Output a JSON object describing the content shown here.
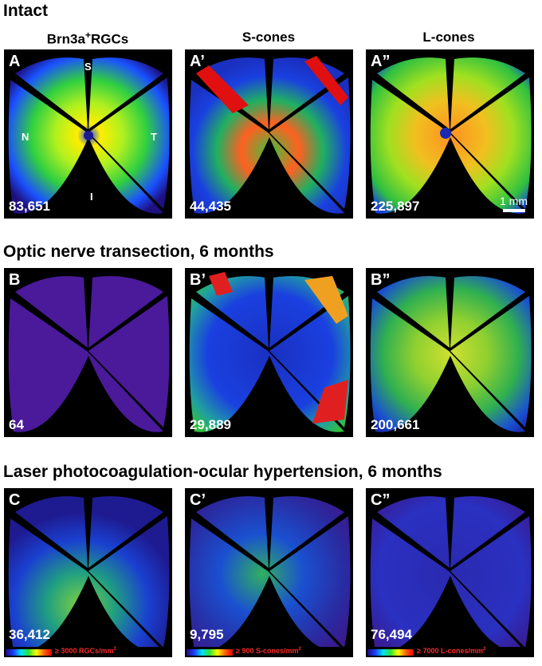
{
  "sections": {
    "intact": "Intact",
    "transection": "Optic nerve transection, 6 months",
    "laser": "Laser photocoagulation-ocular hypertension, 6 months"
  },
  "columns": {
    "rgc_prefix": "Brn3a",
    "rgc_sup": "+",
    "rgc_suffix": "RGCs",
    "scones": "S-cones",
    "lcones": "L-cones"
  },
  "orientation": {
    "s": "S",
    "n": "N",
    "t": "T",
    "i": "I"
  },
  "scale_bar": "1 mm",
  "panels": {
    "A": {
      "label": "A",
      "count": "83,651"
    },
    "A1": {
      "label": "A’",
      "count": "44,435"
    },
    "A2": {
      "label": "A”",
      "count": "225,897"
    },
    "B": {
      "label": "B",
      "count": "64"
    },
    "B1": {
      "label": "B’",
      "count": "29,889"
    },
    "B2": {
      "label": "B”",
      "count": "200,661"
    },
    "C": {
      "label": "C",
      "count": "36,412"
    },
    "C1": {
      "label": "C’",
      "count": "9,795"
    },
    "C2": {
      "label": "C”",
      "count": "76,494"
    }
  },
  "colorbars": {
    "rgc": {
      "text": "≥ 3000 RGCs/mm",
      "sup": "2"
    },
    "scone": {
      "text": "≥ 900 S-cones/mm",
      "sup": "2"
    },
    "lcone": {
      "text": "≥ 7000 L-cones/mm",
      "sup": "2"
    }
  },
  "colors": {
    "background": "#000000",
    "text": "#ffffff",
    "colorbar_text": "#ff2a2a",
    "heat_low": "#1e0a78",
    "heat_blue": "#1a3cff",
    "heat_green": "#30d030",
    "heat_yellow": "#ffff00",
    "heat_red": "#e00000"
  }
}
